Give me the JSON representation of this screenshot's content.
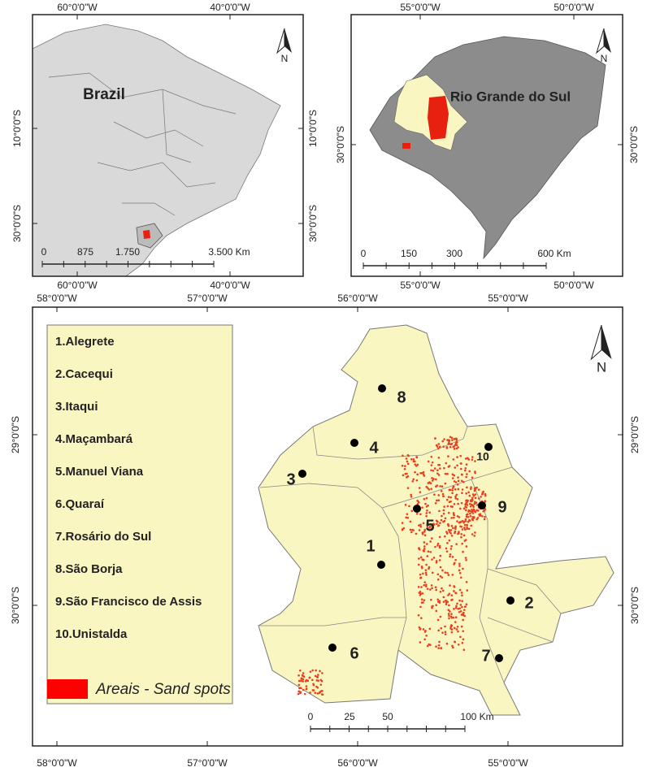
{
  "brazil_map": {
    "lon_labels": [
      "60°0'0\"W",
      "40°0'0\"W"
    ],
    "lat_labels": [
      "10°0'0\"S",
      "30°0'0\"S"
    ],
    "country_label": "Brazil",
    "scale_labels": [
      "0",
      "875",
      "1.750",
      "3.500 Km"
    ],
    "north": "N"
  },
  "state_map": {
    "lon_labels": [
      "55°0'0\"W",
      "50°0'0\"W"
    ],
    "lat_labels": [
      "30°0'0\"S"
    ],
    "state_label": "Rio Grande do Sul",
    "scale_labels": [
      "0",
      "150",
      "300",
      "600 Km"
    ],
    "north": "N"
  },
  "study_map": {
    "lon_labels": [
      "58°0'0\"W",
      "57°0'0\"W",
      "56°0'0\"W",
      "55°0'0\"W"
    ],
    "lat_labels": [
      "29°0'0\"S",
      "30°0'0\"S"
    ],
    "legend_items": [
      "1.Alegrete",
      "2.Cacequi",
      "3.Itaqui",
      "4.Maçambará",
      "5.Manuel Viana",
      "6.Quaraí",
      "7.Rosário do Sul",
      "8.São Borja",
      "9.São Francisco de Assis",
      "10.Unistalda"
    ],
    "legend_sand": "Areais - Sand spots",
    "map_labels": [
      "1",
      "2",
      "3",
      "4",
      "5",
      "6",
      "7",
      "8",
      "9",
      "10"
    ],
    "scale_labels": [
      "0",
      "25",
      "50",
      "100 Km"
    ],
    "north": "N"
  }
}
